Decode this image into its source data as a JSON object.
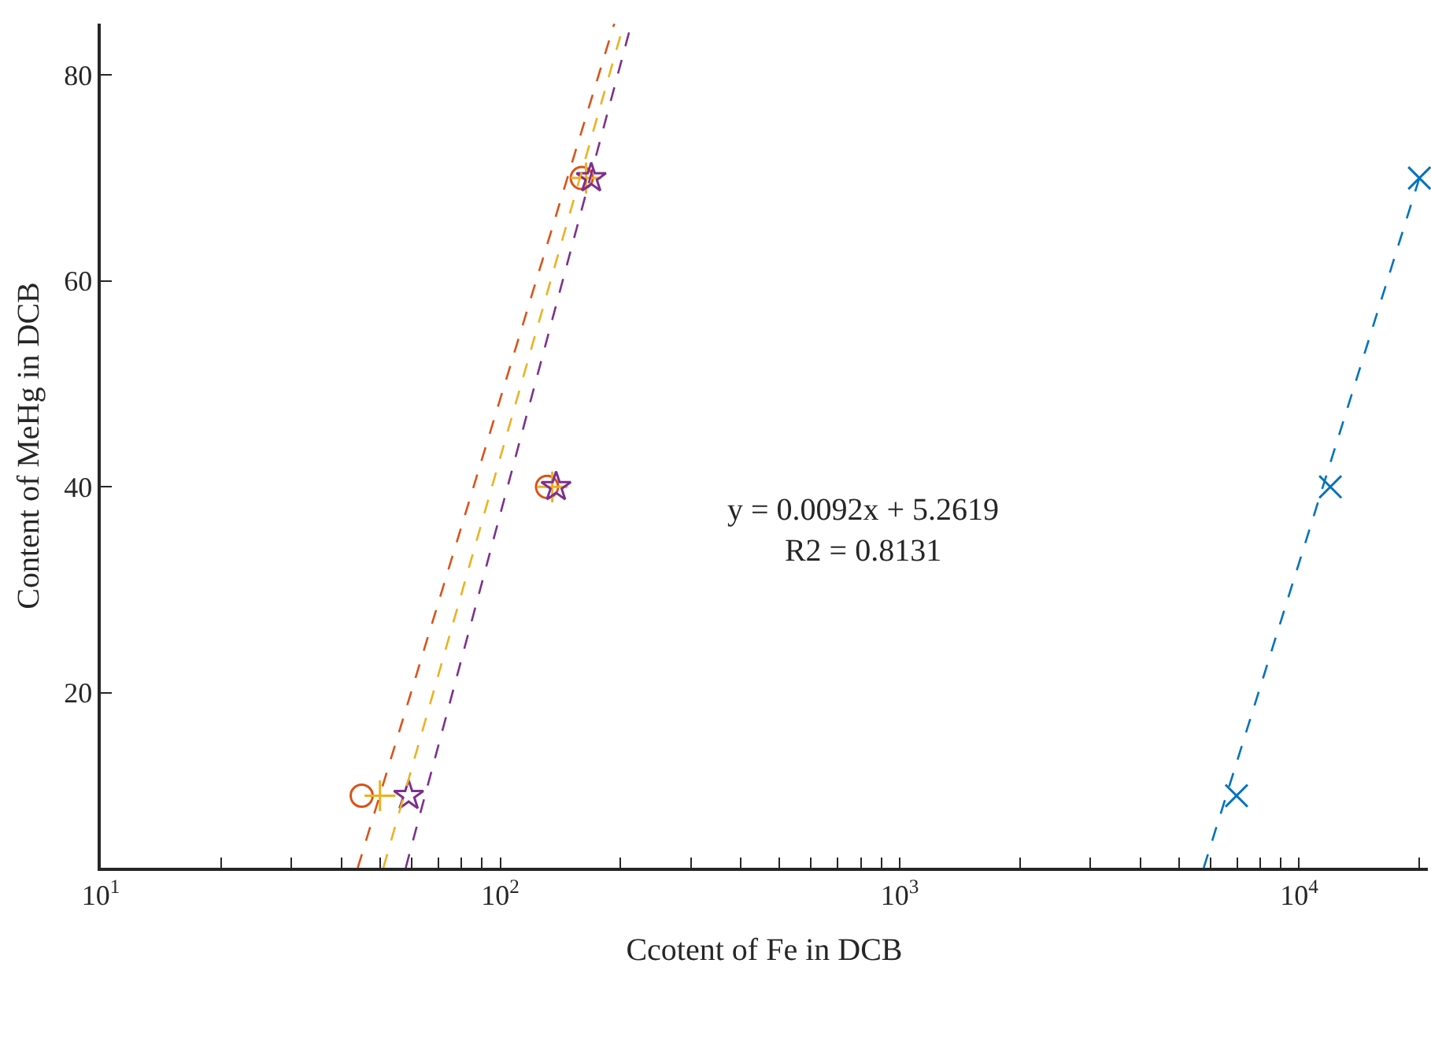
{
  "chart_data": {
    "type": "scatter",
    "xlabel": "Ccotent of Fe in DCB",
    "ylabel": "Content of MeHg in DCB",
    "log": "x",
    "xlim": [
      10,
      21000
    ],
    "ylim": [
      3,
      85
    ],
    "xticks": [
      {
        "value": 10,
        "label": "10$^{1}$"
      },
      {
        "value": 20,
        "label": null
      },
      {
        "value": 30,
        "label": null
      },
      {
        "value": 40,
        "label": null
      },
      {
        "value": 50,
        "label": null
      },
      {
        "value": 60,
        "label": null
      },
      {
        "value": 70,
        "label": null
      },
      {
        "value": 80,
        "label": null
      },
      {
        "value": 90,
        "label": null
      },
      {
        "value": 100,
        "label": "10$^{2}$"
      },
      {
        "value": 200,
        "label": null
      },
      {
        "value": 300,
        "label": null
      },
      {
        "value": 400,
        "label": null
      },
      {
        "value": 500,
        "label": null
      },
      {
        "value": 600,
        "label": null
      },
      {
        "value": 700,
        "label": null
      },
      {
        "value": 800,
        "label": null
      },
      {
        "value": 900,
        "label": null
      },
      {
        "value": 1000,
        "label": "10$^{3}$"
      },
      {
        "value": 2000,
        "label": null
      },
      {
        "value": 3000,
        "label": null
      },
      {
        "value": 4000,
        "label": null
      },
      {
        "value": 5000,
        "label": null
      },
      {
        "value": 6000,
        "label": null
      },
      {
        "value": 7000,
        "label": null
      },
      {
        "value": 8000,
        "label": null
      },
      {
        "value": 9000,
        "label": null
      },
      {
        "value": 10000,
        "label": "10$^{4}$"
      },
      {
        "value": 20000,
        "label": null
      }
    ],
    "yticks": [
      20,
      40,
      60,
      80
    ],
    "annotations": [
      "y = 0.0092x + 5.2619\nR2 = 0.8131"
    ],
    "series": [
      {
        "marker": "circle",
        "color": "#d95319",
        "x": [
          45,
          131,
          160
        ],
        "values": [
          10,
          40,
          70
        ]
      },
      {
        "marker": "cross",
        "color": "#edb120",
        "x": [
          50,
          135,
          164
        ],
        "values": [
          10,
          40,
          70
        ]
      },
      {
        "marker": "star",
        "color": "#7e2f8e",
        "x": [
          59,
          138,
          169
        ],
        "values": [
          10,
          40,
          70
        ]
      },
      {
        "marker": "x",
        "color": "#0072bd",
        "x": [
          6970,
          11970,
          20000
        ],
        "values": [
          10,
          40,
          70
        ]
      },
      {
        "type": "line",
        "line_style": "dashed",
        "color": "#d95319",
        "x": [
          44,
          193
        ],
        "values": [
          3,
          85
        ]
      },
      {
        "type": "line",
        "line_style": "dashed",
        "color": "#edb120",
        "x": [
          51,
          204
        ],
        "values": [
          3,
          85
        ]
      },
      {
        "type": "line",
        "line_style": "dashed",
        "color": "#7e2f8e",
        "x": [
          58,
          213
        ],
        "values": [
          3,
          85
        ]
      },
      {
        "type": "line",
        "line_style": "dashed",
        "color": "#0072bd",
        "x": [
          5770,
          20000
        ],
        "values": [
          3,
          70
        ]
      }
    ]
  }
}
